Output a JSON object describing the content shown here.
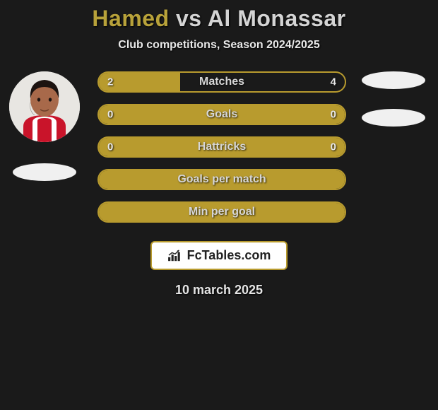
{
  "title": {
    "prefix": "Hamed",
    "vs": "vs",
    "suffix": "Al Monassar",
    "prefix_color": "#b8a23a",
    "rest_color": "#d4d4d4",
    "fontsize": 32
  },
  "subtitle": "Club competitions, Season 2024/2025",
  "background_color": "#1a1a1a",
  "accent_color": "#b89b2e",
  "text_color": "#e8e8e8",
  "player_left": {
    "name": "Hamed",
    "avatar": {
      "skin": "#a8694a",
      "hair": "#1c1310",
      "shirt_primary": "#c9142a",
      "shirt_secondary": "#ffffff"
    }
  },
  "player_right": {
    "name": "Al Monassar"
  },
  "bars": [
    {
      "label": "Matches",
      "left": "2",
      "right": "4",
      "left_pct": 33,
      "right_pct": 0,
      "show_vals": true
    },
    {
      "label": "Goals",
      "left": "0",
      "right": "0",
      "left_pct": 100,
      "right_pct": 0,
      "show_vals": true,
      "full": true
    },
    {
      "label": "Hattricks",
      "left": "0",
      "right": "0",
      "left_pct": 100,
      "right_pct": 0,
      "show_vals": true,
      "full": true
    },
    {
      "label": "Goals per match",
      "left": "",
      "right": "",
      "left_pct": 100,
      "right_pct": 0,
      "show_vals": false,
      "full": true
    },
    {
      "label": "Min per goal",
      "left": "",
      "right": "",
      "left_pct": 100,
      "right_pct": 0,
      "show_vals": false,
      "full": true
    }
  ],
  "bar_style": {
    "height": 30,
    "border_radius": 15,
    "border_width": 2,
    "label_fontsize": 16,
    "val_fontsize": 15
  },
  "watermark": {
    "text": "FcTables.com",
    "icon": "chart-icon"
  },
  "date": "10 march 2025"
}
